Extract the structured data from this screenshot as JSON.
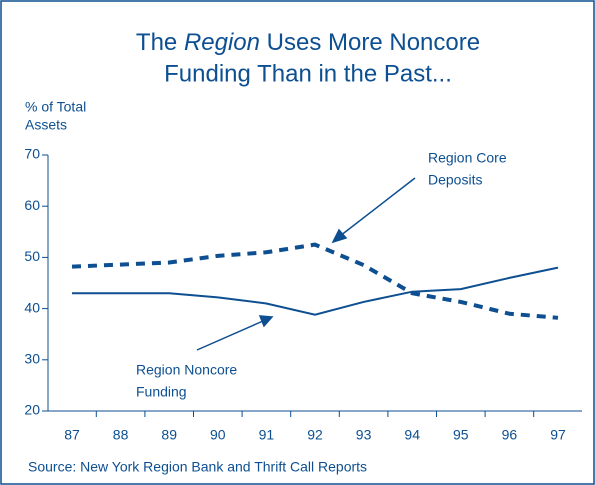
{
  "chart_data": {
    "type": "line",
    "title": [
      "The",
      "Region",
      "Uses More Noncore",
      "Funding Than in the Past..."
    ],
    "ylabel": [
      "% of Total",
      "Assets"
    ],
    "categories": [
      "87",
      "88",
      "89",
      "90",
      "91",
      "92",
      "93",
      "94",
      "95",
      "96",
      "97"
    ],
    "series": [
      {
        "name": [
          "Region Noncore",
          "Funding"
        ],
        "color": "#0d4f91",
        "dashed": false,
        "values": [
          43,
          43,
          43,
          42.2,
          41,
          38.8,
          41.3,
          43.3,
          43.8,
          46,
          48
        ]
      },
      {
        "name": [
          "Region Core",
          "Deposits"
        ],
        "color": "#0d4f91",
        "dashed": true,
        "values": [
          48.2,
          48.6,
          49,
          50.3,
          51,
          52.5,
          48.5,
          43,
          41.3,
          39,
          38.2
        ]
      }
    ],
    "ylim": [
      20,
      70
    ],
    "yticks": [
      20,
      30,
      40,
      50,
      60,
      70
    ],
    "source": "Source:  New York Region Bank and Thrift Call Reports"
  }
}
